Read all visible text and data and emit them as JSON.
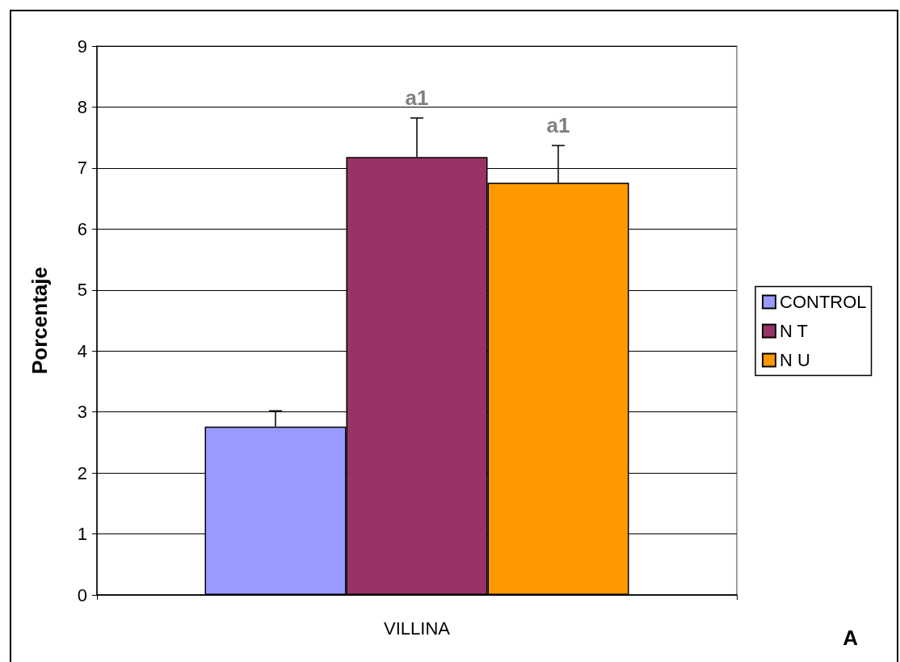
{
  "chart_data": {
    "type": "bar",
    "ylabel": "Porcentaje",
    "categories": [
      "VILLINA"
    ],
    "series": [
      {
        "name": "CONTROL",
        "color": "#9999ff",
        "values": [
          2.76
        ],
        "errors": [
          0.26
        ]
      },
      {
        "name": "N T",
        "color": "#993366",
        "values": [
          7.18
        ],
        "errors": [
          0.64
        ],
        "value_labels": [
          "a1"
        ]
      },
      {
        "name": "N U",
        "color": "#ff9900",
        "values": [
          6.76
        ],
        "errors": [
          0.61
        ],
        "value_labels": [
          "a1"
        ]
      }
    ],
    "ylim": [
      0,
      9
    ],
    "yticks": [
      0,
      1,
      2,
      3,
      4,
      5,
      6,
      7,
      8,
      9
    ],
    "grid": "y",
    "legend": "right",
    "annotations": [
      "A"
    ]
  }
}
